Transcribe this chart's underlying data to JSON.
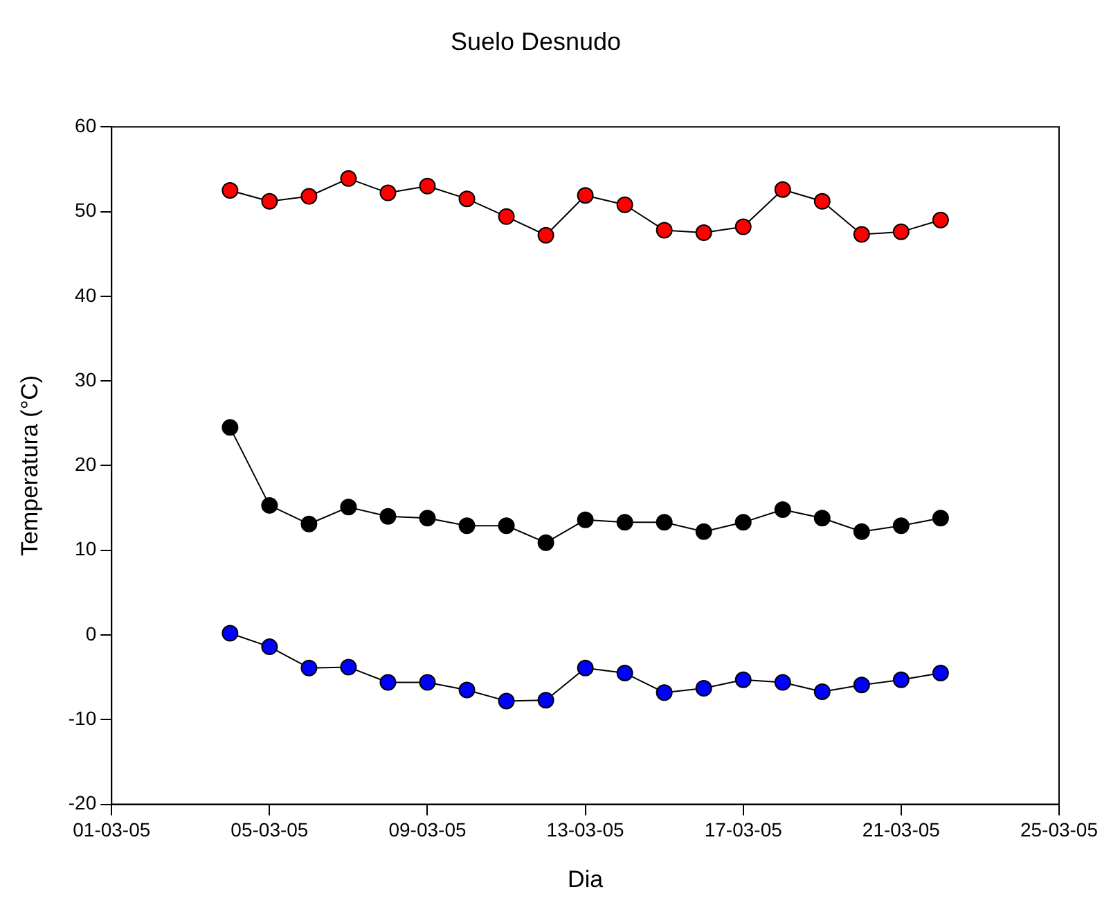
{
  "chart_data": {
    "type": "line",
    "title": "Suelo Desnudo",
    "xlabel": "Dia",
    "ylabel": "Temperatura (°C)",
    "x": [
      "--03-04",
      "--03-05",
      "--03-06",
      "--03-07",
      "--03-08",
      "--03-09",
      "--03-10",
      "--03-11",
      "--03-12",
      "--03-13",
      "--03-14",
      "--03-15",
      "--03-16",
      "--03-17",
      "--03-18",
      "--03-19",
      "--03-20",
      "--03-21",
      "--03-22"
    ],
    "series": [
      {
        "color": "#ff0000",
        "values": [
          52.5,
          51.2,
          51.8,
          53.9,
          52.2,
          53.0,
          51.5,
          49.4,
          47.2,
          51.9,
          50.8,
          47.8,
          47.5,
          48.2,
          52.6,
          51.2,
          47.3,
          47.6,
          49.0
        ]
      },
      {
        "color": "#000000",
        "values": [
          24.5,
          15.3,
          13.1,
          15.1,
          14.0,
          13.8,
          12.9,
          12.9,
          10.9,
          13.6,
          13.3,
          13.3,
          12.2,
          13.3,
          14.8,
          13.8,
          12.2,
          12.9,
          13.8
        ]
      },
      {
        "color": "#0000ff",
        "values": [
          0.2,
          -1.4,
          -3.9,
          -3.8,
          -5.6,
          -5.6,
          -6.5,
          -7.8,
          -7.7,
          -3.9,
          -4.5,
          -6.8,
          -6.3,
          -5.3,
          -5.6,
          -6.7,
          -5.9,
          -5.3,
          -4.5
        ]
      }
    ],
    "xlim": [
      "--03-01",
      "--03-25"
    ],
    "xticks": [
      {
        "value": "--03-01",
        "label": "01-03-05"
      },
      {
        "value": "--03-05",
        "label": "05-03-05"
      },
      {
        "value": "--03-09",
        "label": "09-03-05"
      },
      {
        "value": "--03-13",
        "label": "13-03-05"
      },
      {
        "value": "--03-17",
        "label": "17-03-05"
      },
      {
        "value": "--03-21",
        "label": "21-03-05"
      },
      {
        "value": "--03-25",
        "label": "25-03-05"
      }
    ],
    "ylim": [
      -20,
      60
    ],
    "yticks": [
      -20,
      -10,
      0,
      10,
      20,
      30,
      40,
      50,
      60
    ],
    "grid": false,
    "legend": false,
    "marker": "circle",
    "line_style": "solid"
  }
}
